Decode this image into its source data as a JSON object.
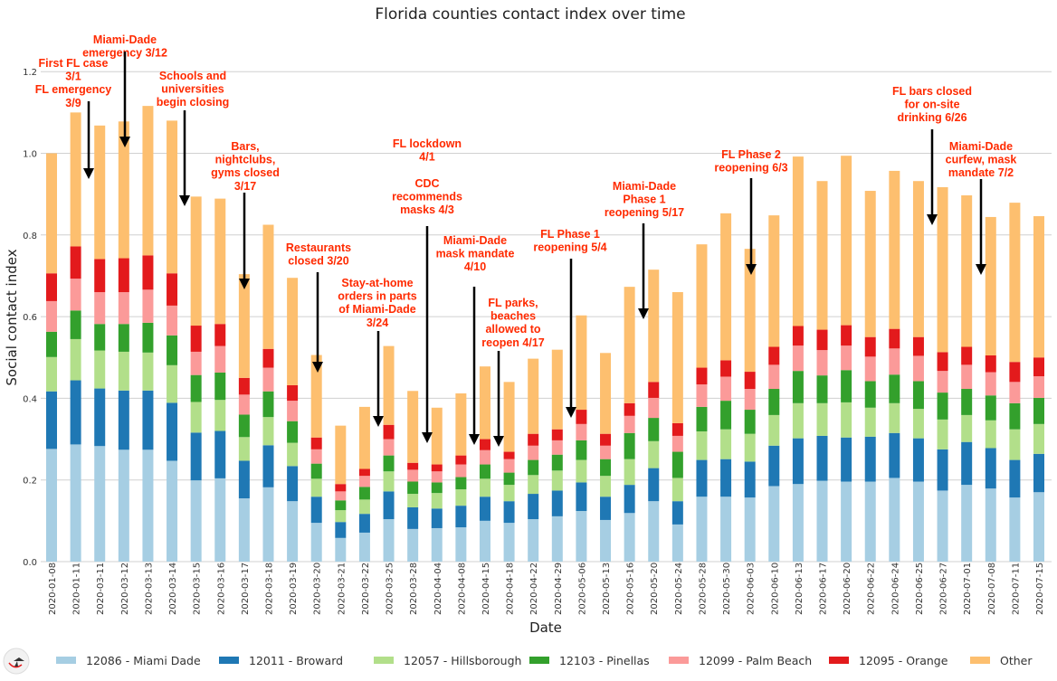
{
  "logo_text": "VIPRA",
  "chart_data": {
    "type": "bar",
    "stacked": true,
    "title": "Florida counties contact index over time",
    "xlabel": "Date",
    "ylabel": "Social contact index",
    "ylim": [
      0,
      1.25
    ],
    "yticks": [
      "0.0",
      "0.2",
      "0.4",
      "0.6",
      "0.8",
      "1.0",
      "1.2"
    ],
    "grid": true,
    "legend_placement": "bottom",
    "categories": [
      "2020-01-08",
      "2020-01-11",
      "2020-03-11",
      "2020-03-12",
      "2020-03-13",
      "2020-03-14",
      "2020-03-15",
      "2020-03-16",
      "2020-03-17",
      "2020-03-18",
      "2020-03-19",
      "2020-03-20",
      "2020-03-21",
      "2020-03-22",
      "2020-03-25",
      "2020-03-28",
      "2020-04-04",
      "2020-04-08",
      "2020-04-15",
      "2020-04-18",
      "2020-04-22",
      "2020-04-29",
      "2020-05-06",
      "2020-05-13",
      "2020-05-16",
      "2020-05-20",
      "2020-05-24",
      "2020-05-28",
      "2020-05-30",
      "2020-06-03",
      "2020-06-10",
      "2020-06-13",
      "2020-06-17",
      "2020-06-20",
      "2020-06-22",
      "2020-06-24",
      "2020-06-25",
      "2020-06-27",
      "2020-07-01",
      "2020-07-08",
      "2020-07-11",
      "2020-07-15"
    ],
    "series": [
      {
        "name": "12086 - Miami Dade",
        "color": "#a6cee3",
        "values": [
          0.276,
          0.287,
          0.283,
          0.274,
          0.274,
          0.247,
          0.199,
          0.204,
          0.155,
          0.182,
          0.148,
          0.095,
          0.058,
          0.071,
          0.104,
          0.08,
          0.082,
          0.084,
          0.1,
          0.095,
          0.104,
          0.111,
          0.124,
          0.102,
          0.119,
          0.148,
          0.091,
          0.159,
          0.159,
          0.157,
          0.185,
          0.19,
          0.198,
          0.196,
          0.196,
          0.205,
          0.196,
          0.174,
          0.188,
          0.179,
          0.157,
          0.17
        ]
      },
      {
        "name": "12011 - Broward",
        "color": "#1f78b4",
        "values": [
          0.141,
          0.157,
          0.141,
          0.145,
          0.145,
          0.142,
          0.117,
          0.116,
          0.092,
          0.103,
          0.086,
          0.064,
          0.039,
          0.046,
          0.068,
          0.053,
          0.048,
          0.053,
          0.059,
          0.053,
          0.062,
          0.063,
          0.07,
          0.057,
          0.069,
          0.081,
          0.057,
          0.09,
          0.092,
          0.088,
          0.099,
          0.112,
          0.11,
          0.108,
          0.11,
          0.11,
          0.106,
          0.101,
          0.105,
          0.099,
          0.092,
          0.094
        ]
      },
      {
        "name": "12057 - Hillsborough",
        "color": "#b2df8a",
        "values": [
          0.084,
          0.101,
          0.093,
          0.095,
          0.093,
          0.092,
          0.075,
          0.076,
          0.058,
          0.069,
          0.057,
          0.044,
          0.029,
          0.035,
          0.049,
          0.033,
          0.038,
          0.04,
          0.044,
          0.04,
          0.046,
          0.049,
          0.055,
          0.051,
          0.063,
          0.066,
          0.057,
          0.07,
          0.073,
          0.068,
          0.075,
          0.086,
          0.08,
          0.086,
          0.071,
          0.073,
          0.072,
          0.073,
          0.066,
          0.068,
          0.075,
          0.073
        ]
      },
      {
        "name": "12103 - Pinellas",
        "color": "#33a02c",
        "values": [
          0.062,
          0.07,
          0.065,
          0.068,
          0.073,
          0.073,
          0.066,
          0.067,
          0.055,
          0.063,
          0.053,
          0.037,
          0.024,
          0.031,
          0.039,
          0.03,
          0.026,
          0.03,
          0.035,
          0.03,
          0.037,
          0.039,
          0.048,
          0.041,
          0.064,
          0.057,
          0.064,
          0.06,
          0.07,
          0.059,
          0.064,
          0.079,
          0.068,
          0.079,
          0.065,
          0.07,
          0.068,
          0.066,
          0.064,
          0.061,
          0.064,
          0.064
        ]
      },
      {
        "name": "12099 - Palm Beach",
        "color": "#fb9a99",
        "values": [
          0.075,
          0.078,
          0.078,
          0.078,
          0.081,
          0.073,
          0.057,
          0.065,
          0.049,
          0.058,
          0.05,
          0.035,
          0.022,
          0.027,
          0.04,
          0.029,
          0.027,
          0.031,
          0.035,
          0.033,
          0.035,
          0.035,
          0.04,
          0.033,
          0.042,
          0.049,
          0.039,
          0.055,
          0.059,
          0.051,
          0.059,
          0.062,
          0.062,
          0.06,
          0.06,
          0.064,
          0.062,
          0.053,
          0.059,
          0.057,
          0.052,
          0.053
        ]
      },
      {
        "name": "12095 - Orange",
        "color": "#e31a1c",
        "values": [
          0.068,
          0.079,
          0.081,
          0.083,
          0.084,
          0.079,
          0.064,
          0.054,
          0.041,
          0.046,
          0.038,
          0.029,
          0.018,
          0.017,
          0.035,
          0.017,
          0.017,
          0.022,
          0.027,
          0.018,
          0.029,
          0.027,
          0.035,
          0.029,
          0.031,
          0.039,
          0.031,
          0.041,
          0.04,
          0.042,
          0.044,
          0.048,
          0.05,
          0.05,
          0.048,
          0.048,
          0.046,
          0.046,
          0.044,
          0.041,
          0.049,
          0.046
        ]
      },
      {
        "name": "Other",
        "color": "#fdbf6f",
        "values": [
          0.294,
          0.328,
          0.327,
          0.335,
          0.366,
          0.374,
          0.316,
          0.307,
          0.254,
          0.304,
          0.263,
          0.202,
          0.143,
          0.152,
          0.193,
          0.176,
          0.139,
          0.152,
          0.178,
          0.171,
          0.184,
          0.195,
          0.231,
          0.198,
          0.285,
          0.275,
          0.321,
          0.302,
          0.36,
          0.301,
          0.322,
          0.415,
          0.364,
          0.415,
          0.358,
          0.387,
          0.382,
          0.404,
          0.371,
          0.339,
          0.39,
          0.346
        ]
      }
    ],
    "annotations": [
      {
        "lines": [
          "First FL case",
          "3/1",
          "FL emergency",
          "3/9"
        ]
      },
      {
        "lines": [
          "Miami-Dade",
          "emergency 3/12"
        ]
      },
      {
        "lines": [
          "Schools and",
          "universities",
          "begin closing"
        ]
      },
      {
        "lines": [
          "Bars,",
          "nightclubs,",
          "gyms closed",
          "3/17"
        ]
      },
      {
        "lines": [
          "Restaurants",
          "closed 3/20"
        ]
      },
      {
        "lines": [
          "Stay-at-home",
          "orders in parts",
          "of Miami-Dade",
          "3/24"
        ]
      },
      {
        "lines": [
          "FL lockdown",
          "4/1",
          "",
          "CDC",
          "recommends",
          "masks 4/3"
        ]
      },
      {
        "lines": [
          "Miami-Dade",
          "mask mandate",
          "4/10"
        ]
      },
      {
        "lines": [
          "FL parks,",
          "beaches",
          "allowed to",
          "reopen 4/17"
        ]
      },
      {
        "lines": [
          "FL Phase 1",
          "reopening 5/4"
        ]
      },
      {
        "lines": [
          "Miami-Dade",
          "Phase 1",
          "reopening 5/17"
        ]
      },
      {
        "lines": [
          "FL Phase 2",
          "reopening 6/3"
        ]
      },
      {
        "lines": [
          "FL bars closed",
          "for on-site",
          "drinking 6/26"
        ]
      },
      {
        "lines": [
          "Miami-Dade",
          "curfew, mask",
          "mandate 7/2"
        ]
      }
    ],
    "annotation_color": "#ff2a00"
  }
}
